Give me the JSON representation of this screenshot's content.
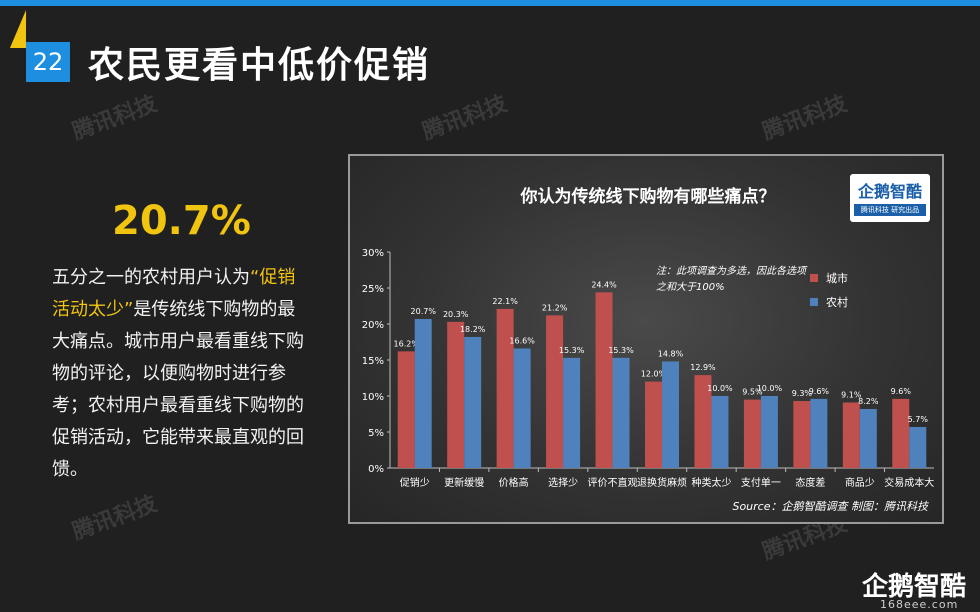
{
  "slide": {
    "number": "22",
    "title": "农民更看中低价促销",
    "big_stat": "20.7%",
    "description_parts": [
      {
        "text": "五分之一的农村用户认为",
        "hl": false
      },
      {
        "text": "“促销活动太少”",
        "hl": true
      },
      {
        "text": "是传统线下购物的最大痛点。城市用户最看重线下购物的评论，以便购物时进行参考；农村用户最看重线下购物的促销活动，它能带来最直观的回馈。",
        "hl": false
      }
    ],
    "watermark": "腾讯科技",
    "corner_logo": "企鹅智酷",
    "corner_sub": "168eee.com",
    "colors": {
      "top_bar": "#1e8fe0",
      "slide_num_bg": "#1e8fe0",
      "accent": "#f1c40f",
      "city": "#c0504d",
      "rural": "#4f81bd"
    }
  },
  "chart_data": {
    "type": "bar",
    "title": "你认为传统线下购物有哪些痛点？",
    "categories": [
      "促销少",
      "更新缓慢",
      "价格高",
      "选择少",
      "评价不直观",
      "退换货麻烦",
      "种类太少",
      "支付单一",
      "态度差",
      "商品少",
      "交易成本大"
    ],
    "series": [
      {
        "name": "城市",
        "values": [
          16.2,
          20.3,
          22.1,
          21.2,
          24.4,
          12.0,
          12.9,
          9.5,
          9.3,
          9.1,
          9.6
        ]
      },
      {
        "name": "农村",
        "values": [
          20.7,
          18.2,
          16.6,
          15.3,
          15.3,
          14.8,
          10.0,
          10.0,
          9.6,
          8.2,
          5.7
        ]
      }
    ],
    "ylim": [
      0,
      30
    ],
    "yticks": [
      "0%",
      "5%",
      "10%",
      "15%",
      "20%",
      "25%",
      "30%"
    ],
    "note": "注：此项调查为多选，因此各选项之和大于100%",
    "source": "Source：企鹅智酷调查  制图：腾讯科技",
    "logo_main": "企鹅智酷",
    "logo_sub": "腾讯科技  研究出品",
    "legend_placement": "top-right",
    "grid": false
  }
}
